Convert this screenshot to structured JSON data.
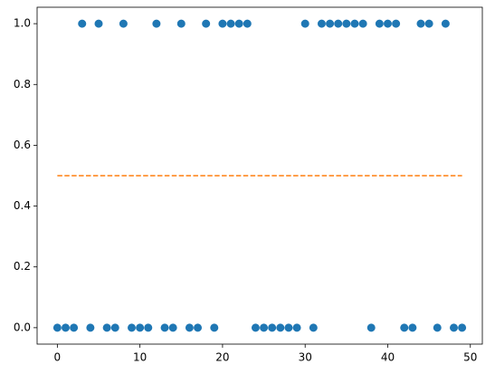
{
  "chart_data": {
    "type": "scatter",
    "xlim": [
      -2.45,
      51.45
    ],
    "ylim": [
      -0.054,
      1.054
    ],
    "xticks": [
      0,
      10,
      20,
      30,
      40,
      50
    ],
    "yticks": [
      {
        "value": 0,
        "label": "0.0"
      },
      0.2,
      0.4,
      0.6,
      0.8,
      {
        "value": 1,
        "label": "1.0"
      }
    ],
    "series": [
      {
        "kind": "scatter",
        "color": "#1f77b4",
        "x": [
          0,
          1,
          2,
          3,
          4,
          5,
          6,
          7,
          8,
          9,
          10,
          11,
          12,
          13,
          14,
          15,
          16,
          17,
          18,
          19,
          20,
          21,
          22,
          23,
          24,
          25,
          26,
          27,
          28,
          29,
          30,
          31,
          32,
          33,
          34,
          35,
          36,
          37,
          38,
          39,
          40,
          41,
          42,
          43,
          44,
          45,
          46,
          47,
          48,
          49
        ],
        "values": [
          0,
          0,
          0,
          1,
          0,
          1,
          0,
          0,
          1,
          0,
          0,
          0,
          1,
          0,
          0,
          1,
          0,
          0,
          1,
          0,
          1,
          1,
          1,
          1,
          0,
          0,
          0,
          0,
          0,
          0,
          1,
          0,
          1,
          1,
          1,
          1,
          1,
          1,
          0,
          1,
          1,
          1,
          0,
          0,
          1,
          1,
          0,
          1,
          0,
          0
        ]
      },
      {
        "kind": "line",
        "color": "#ff7f0e",
        "dashed": true,
        "x": [
          0,
          49
        ],
        "values": [
          0.5,
          0.5
        ]
      }
    ]
  }
}
